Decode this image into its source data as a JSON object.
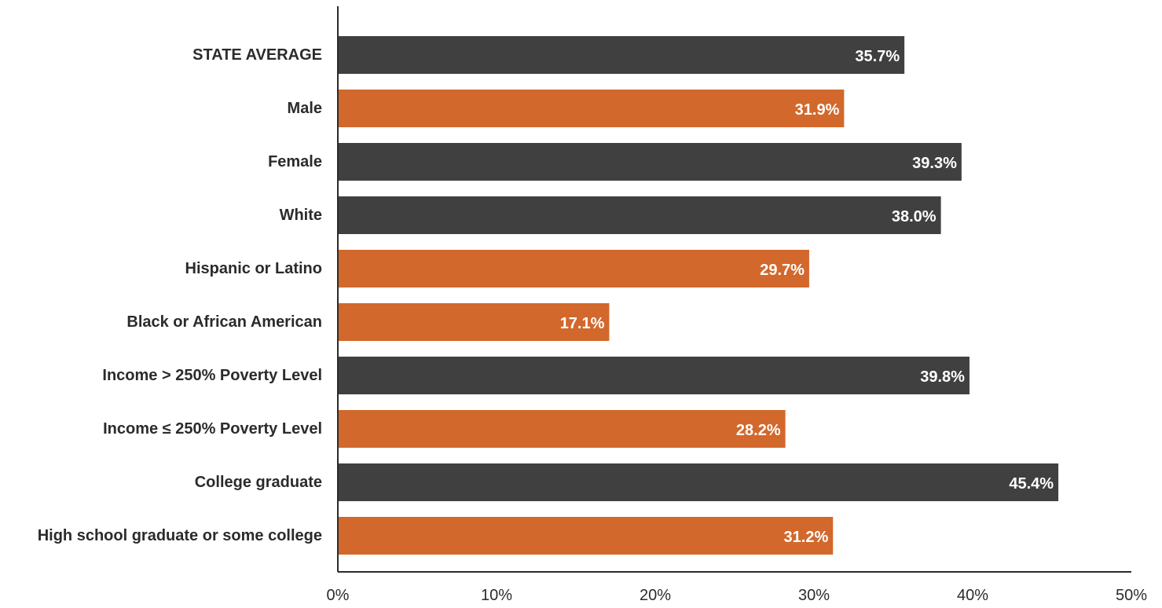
{
  "chart_data": {
    "type": "bar",
    "orientation": "horizontal",
    "title": "",
    "xlabel": "",
    "ylabel": "",
    "xlim": [
      0,
      50
    ],
    "grid": false,
    "legend": "none",
    "x_ticks": [
      "0%",
      "10%",
      "20%",
      "30%",
      "40%",
      "50%"
    ],
    "x_tick_values": [
      0,
      10,
      20,
      30,
      40,
      50
    ],
    "categories": [
      "STATE AVERAGE",
      "Male",
      "Female",
      "White",
      "Hispanic or Latino",
      "Black or African American",
      "Income > 250% Poverty Level",
      "Income ≤ 250% Poverty Level",
      "College graduate",
      "High school graduate or some college"
    ],
    "values": [
      35.7,
      31.9,
      39.3,
      38.0,
      29.7,
      17.1,
      39.8,
      28.2,
      45.4,
      31.2
    ],
    "value_labels": [
      "35.7%",
      "31.9%",
      "39.3%",
      "38.0%",
      "29.7%",
      "17.1%",
      "39.8%",
      "28.2%",
      "45.4%",
      "31.2%"
    ],
    "bar_colors": [
      "#404040",
      "#d2682b",
      "#404040",
      "#404040",
      "#d2682b",
      "#d2682b",
      "#404040",
      "#d2682b",
      "#404040",
      "#d2682b"
    ]
  }
}
